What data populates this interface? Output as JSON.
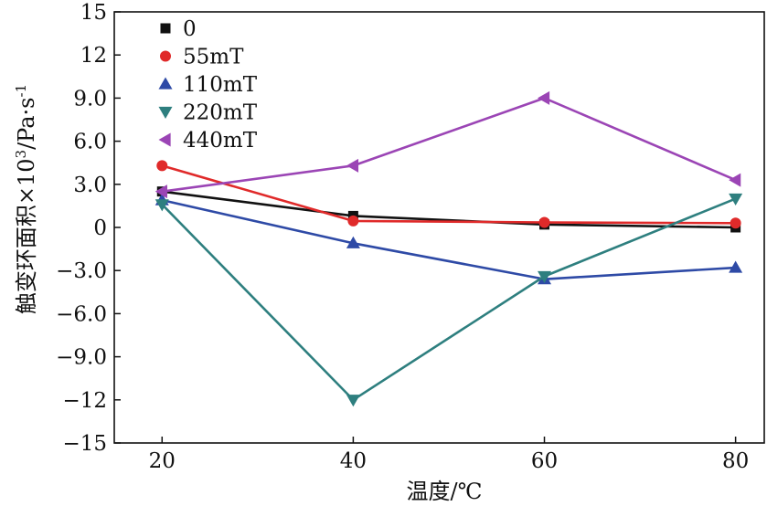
{
  "chart_data": {
    "type": "line",
    "title": "",
    "xlabel": "温度/℃",
    "ylabel": "触变环面积×10³/Pa·s⁻¹",
    "ylabel_main": "触变环面积×10",
    "ylabel_sup1": "3",
    "ylabel_unit": "/Pa·s",
    "ylabel_sup2": "-1",
    "x": [
      20,
      40,
      60,
      80
    ],
    "xlim": [
      15,
      83
    ],
    "ylim": [
      -15,
      15
    ],
    "xticks": [
      20,
      40,
      60,
      80
    ],
    "xtick_labels": [
      "20",
      "40",
      "60",
      "80"
    ],
    "yticks": [
      -15,
      -12,
      -9,
      -6,
      -3,
      0,
      3,
      6,
      9,
      12,
      15
    ],
    "ytick_labels": [
      "−15",
      "−12",
      "−9.0",
      "−6.0",
      "−3.0",
      "0",
      "3.0",
      "6.0",
      "9.0",
      "12",
      "15"
    ],
    "grid": false,
    "legend_position": "top-left",
    "series": [
      {
        "name": "0",
        "marker": "square",
        "color": "#111111",
        "values": [
          2.5,
          0.8,
          0.2,
          0.0
        ]
      },
      {
        "name": "55mT",
        "marker": "circle",
        "color": "#e02a2a",
        "values": [
          4.3,
          0.45,
          0.35,
          0.3
        ]
      },
      {
        "name": "110mT",
        "marker": "triangle-up",
        "color": "#2e4aa6",
        "values": [
          1.9,
          -1.1,
          -3.6,
          -2.8
        ]
      },
      {
        "name": "220mT",
        "marker": "triangle-down",
        "color": "#2e7f7f",
        "values": [
          1.6,
          -12.0,
          -3.4,
          2.0
        ]
      },
      {
        "name": "440mT",
        "marker": "triangle-left",
        "color": "#9b45b5",
        "values": [
          2.5,
          4.3,
          9.0,
          3.3
        ]
      }
    ]
  }
}
